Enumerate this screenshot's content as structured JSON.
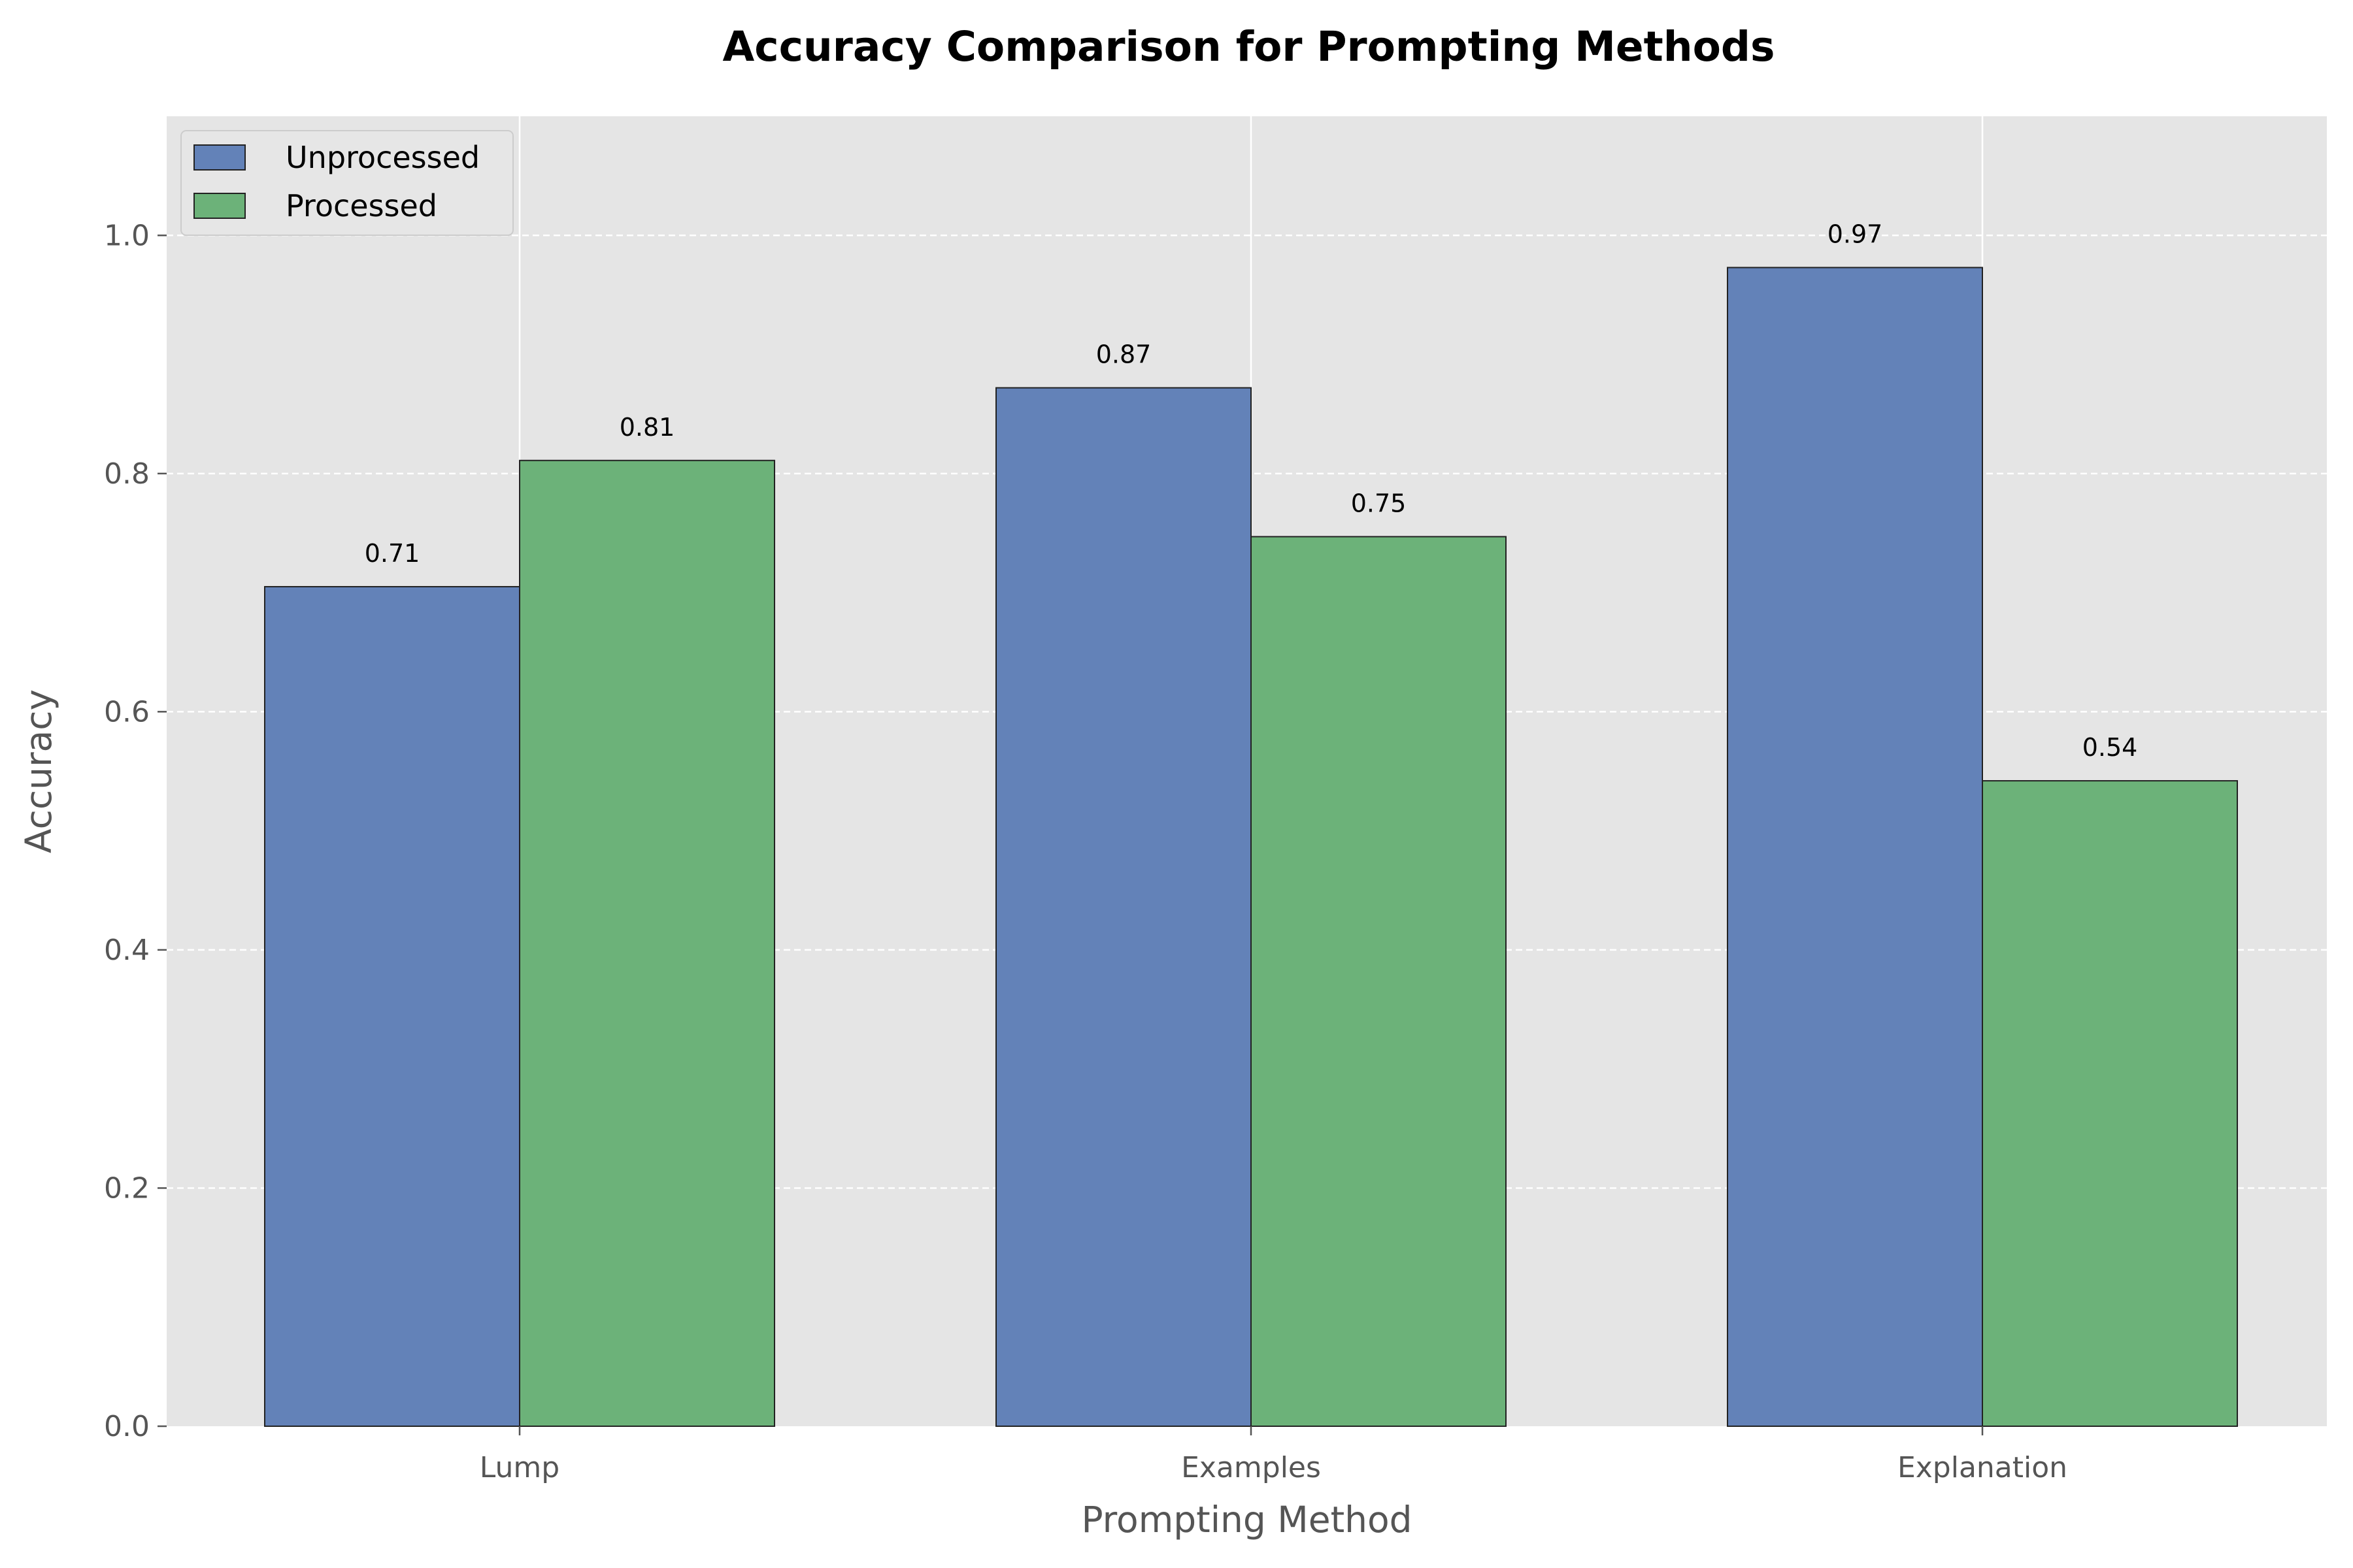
{
  "chart_data": {
    "type": "bar",
    "title": "Accuracy Comparison for Prompting Methods",
    "xlabel": "Prompting Method",
    "ylabel": "Accuracy",
    "categories": [
      "Lump",
      "Examples",
      "Explanation"
    ],
    "series": [
      {
        "name": "Unprocessed",
        "values": [
          0.705,
          0.872,
          0.973
        ],
        "labels": [
          "0.71",
          "0.87",
          "0.97"
        ],
        "color": "#6382b8"
      },
      {
        "name": "Processed",
        "values": [
          0.811,
          0.747,
          0.542
        ],
        "labels": [
          "0.81",
          "0.75",
          "0.54"
        ],
        "color": "#6cb279"
      }
    ],
    "ylim": [
      0,
      1.1
    ],
    "yticks": [
      0.0,
      0.2,
      0.4,
      0.6,
      0.8,
      1.0
    ],
    "ytick_labels": [
      "0.0",
      "0.2",
      "0.4",
      "0.6",
      "0.8",
      "1.0"
    ],
    "grid": true,
    "legend_position": "top-left",
    "background_color": "#e5e5e5"
  }
}
